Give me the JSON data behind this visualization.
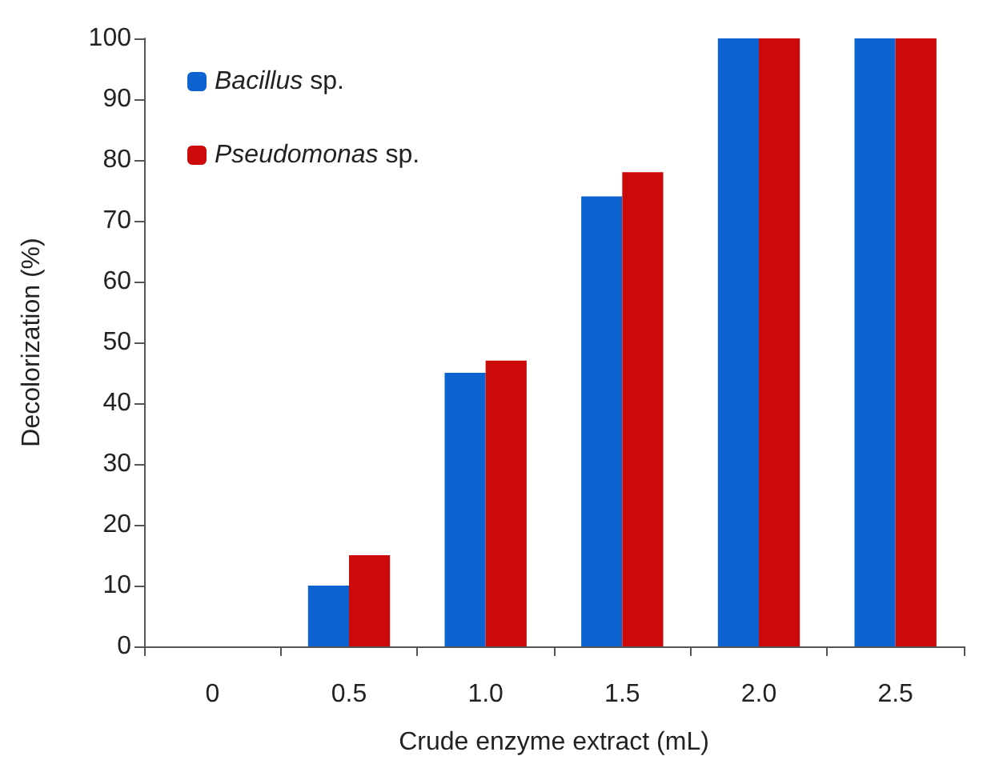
{
  "chart_data": {
    "type": "bar",
    "xlabel": "Crude enzyme extract (mL)",
    "ylabel": "Decolorization (%)",
    "categories": [
      "0",
      "0.5",
      "1.0",
      "1.5",
      "2.0",
      "2.5"
    ],
    "series": [
      {
        "name": "Bacillus sp.",
        "color": "#0d63cf",
        "values": [
          0,
          10,
          45,
          74,
          100,
          100
        ]
      },
      {
        "name": "Pseudomonas sp.",
        "color": "#cc0a0a",
        "values": [
          0,
          15,
          47,
          78,
          100,
          100
        ]
      }
    ],
    "ylim": [
      0,
      100
    ],
    "yticks": [
      0,
      10,
      20,
      30,
      40,
      50,
      60,
      70,
      80,
      90,
      100
    ],
    "grid": false,
    "legend": "top left"
  }
}
